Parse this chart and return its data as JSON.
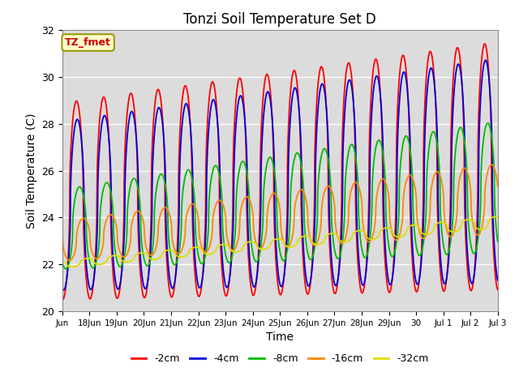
{
  "title": "Tonzi Soil Temperature Set D",
  "xlabel": "Time",
  "ylabel": "Soil Temperature (C)",
  "ylim": [
    20,
    32
  ],
  "annotation": "TZ_fmet",
  "legend_labels": [
    "-2cm",
    "-4cm",
    "-8cm",
    "-16cm",
    "-32cm"
  ],
  "line_colors": [
    "#ff0000",
    "#0000dd",
    "#00bb00",
    "#ff8800",
    "#dddd00"
  ],
  "line_widths": [
    1.3,
    1.3,
    1.3,
    1.3,
    1.3
  ],
  "background_color": "#dcdcdc",
  "grid_color": "#ffffff",
  "xtick_labels": [
    "Jun",
    "18Jun",
    "19Jun",
    "20Jun",
    "21Jun",
    "22Jun",
    "23Jun",
    "24Jun",
    "25Jun",
    "26Jun",
    "27Jun",
    "28Jun",
    "29Jun",
    "30",
    "Jul 1",
    "Jul 2",
    "Jul 3"
  ],
  "xtick_positions": [
    17,
    18,
    19,
    20,
    21,
    22,
    23,
    24,
    25,
    26,
    27,
    28,
    29,
    30,
    31,
    32,
    33
  ],
  "ytick_positions": [
    20,
    22,
    24,
    26,
    28,
    30,
    32
  ]
}
